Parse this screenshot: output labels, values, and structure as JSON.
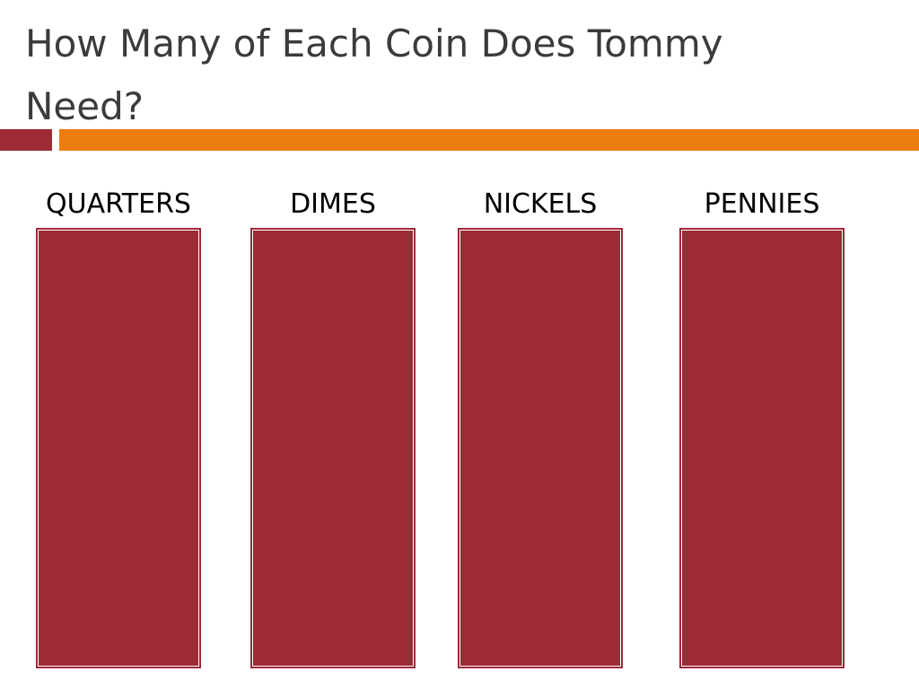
{
  "header": {
    "title": "How Many of Each Coin Does Tommy Need?"
  },
  "columns": [
    {
      "label": "QUARTERS"
    },
    {
      "label": "DIMES"
    },
    {
      "label": "NICKELS"
    },
    {
      "label": "PENNIES"
    }
  ]
}
